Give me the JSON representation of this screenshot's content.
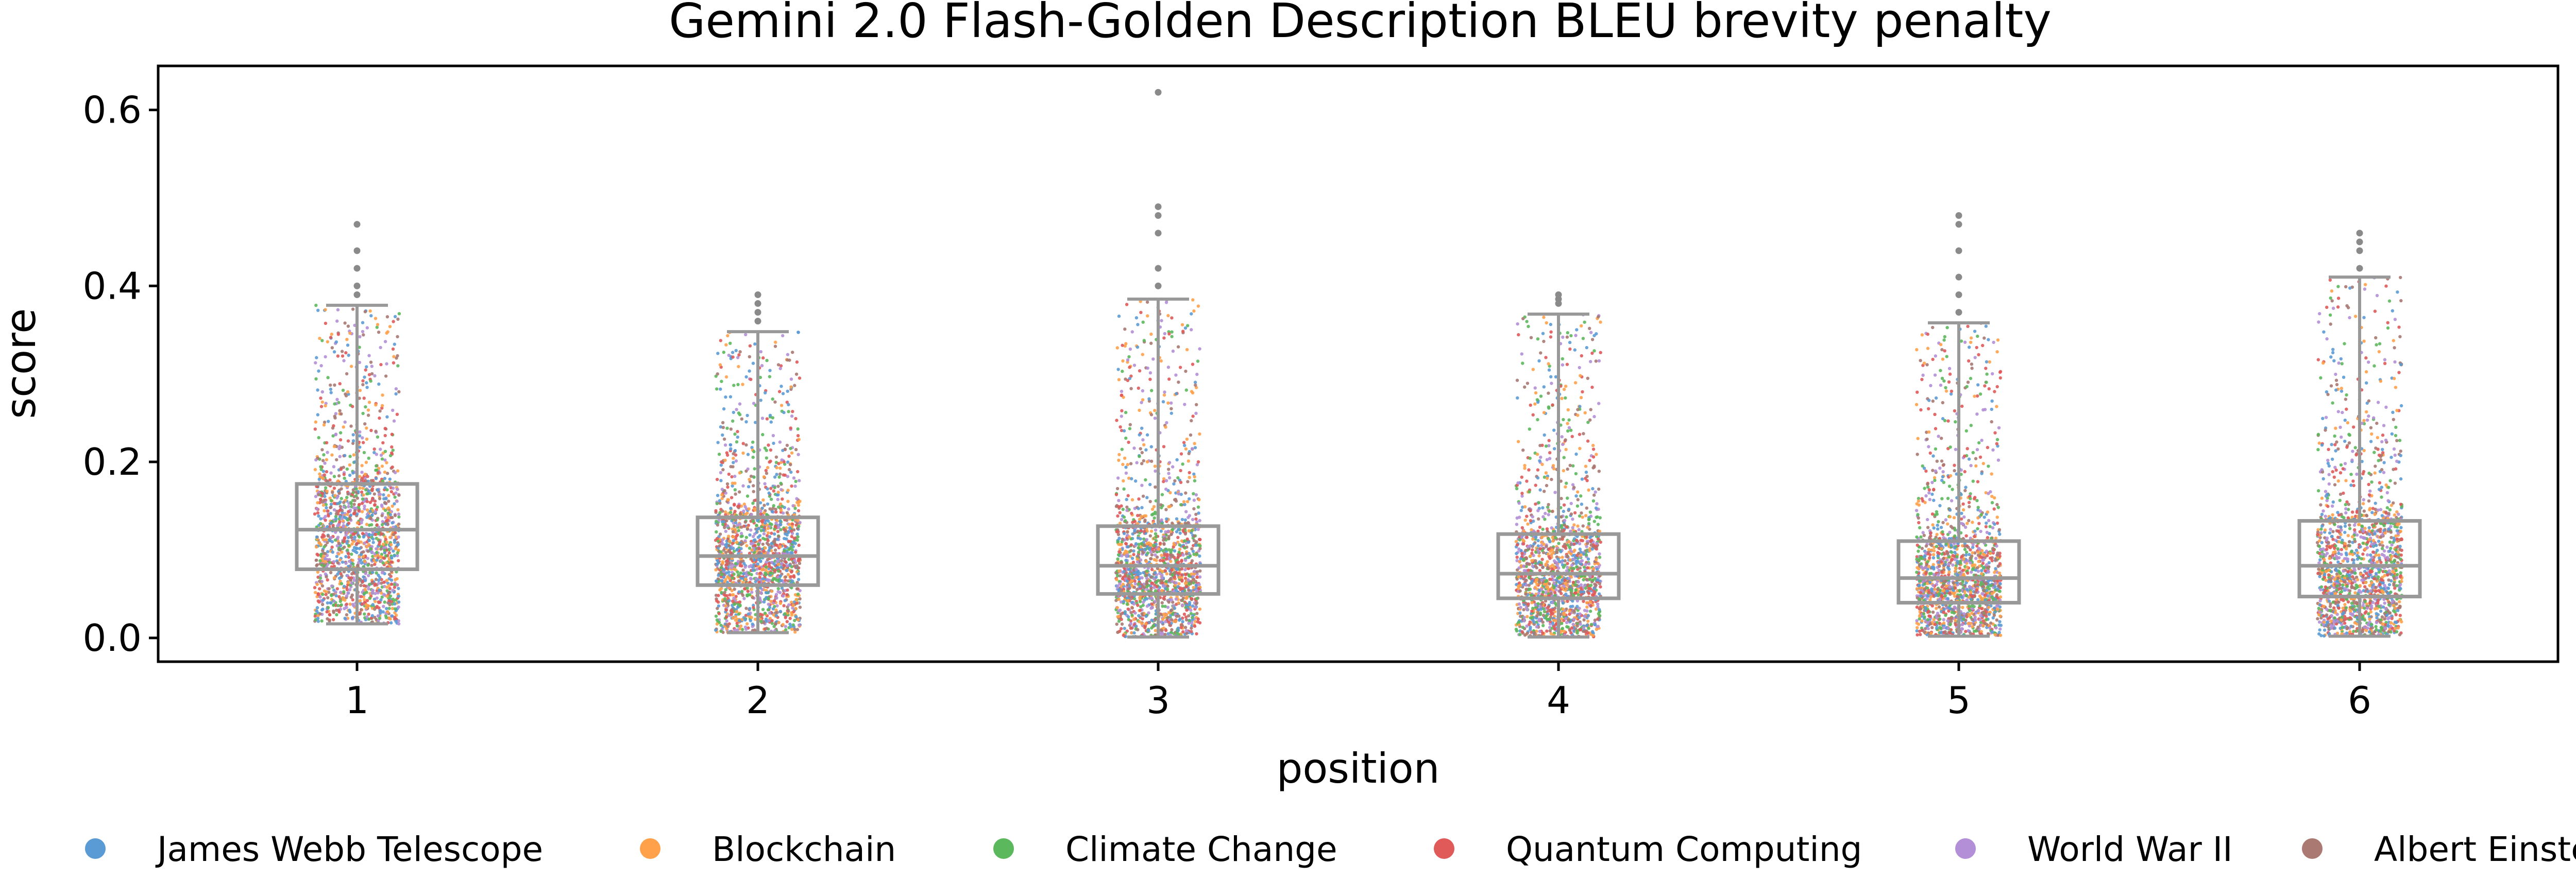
{
  "chart_data": {
    "type": "box-strip",
    "title": "Gemini 2.0 Flash-Golden Description BLEU brevity penalty",
    "xlabel": "position",
    "ylabel": "score",
    "ylim": [
      -0.027,
      0.65
    ],
    "yticks": [
      "0.0",
      "0.2",
      "0.4",
      "0.6"
    ],
    "categories": [
      "1",
      "2",
      "3",
      "4",
      "5",
      "6"
    ],
    "grid": false,
    "legend_position": "bottom",
    "boxes": [
      {
        "position": "1",
        "q1": 0.078,
        "median": 0.123,
        "q3": 0.175,
        "whisker_low": 0.016,
        "whisker_high": 0.378,
        "outliers": [
          0.39,
          0.4,
          0.42,
          0.44,
          0.47
        ]
      },
      {
        "position": "2",
        "q1": 0.06,
        "median": 0.093,
        "q3": 0.137,
        "whisker_low": 0.006,
        "whisker_high": 0.348,
        "outliers": [
          0.36,
          0.37,
          0.38,
          0.39
        ]
      },
      {
        "position": "3",
        "q1": 0.05,
        "median": 0.082,
        "q3": 0.127,
        "whisker_low": 0.001,
        "whisker_high": 0.385,
        "outliers": [
          0.4,
          0.42,
          0.46,
          0.48,
          0.49,
          0.62
        ]
      },
      {
        "position": "4",
        "q1": 0.045,
        "median": 0.073,
        "q3": 0.118,
        "whisker_low": 0.001,
        "whisker_high": 0.368,
        "outliers": [
          0.38,
          0.385,
          0.39
        ]
      },
      {
        "position": "5",
        "q1": 0.04,
        "median": 0.068,
        "q3": 0.11,
        "whisker_low": 0.002,
        "whisker_high": 0.358,
        "outliers": [
          0.37,
          0.39,
          0.41,
          0.44,
          0.47,
          0.48
        ]
      },
      {
        "position": "6",
        "q1": 0.047,
        "median": 0.082,
        "q3": 0.133,
        "whisker_low": 0.002,
        "whisker_high": 0.41,
        "outliers": [
          0.42,
          0.44,
          0.45,
          0.46
        ]
      }
    ],
    "series": [
      {
        "name": "James Webb Telescope",
        "color": "#5b9bd5"
      },
      {
        "name": "Blockchain",
        "color": "#ffa14a"
      },
      {
        "name": "Climate Change",
        "color": "#5cb85c"
      },
      {
        "name": "Quantum Computing",
        "color": "#e05a5a"
      },
      {
        "name": "World War II",
        "color": "#b28fd6"
      },
      {
        "name": "Albert Einstein",
        "color": "#a97972"
      }
    ],
    "box_color": "#999999"
  }
}
